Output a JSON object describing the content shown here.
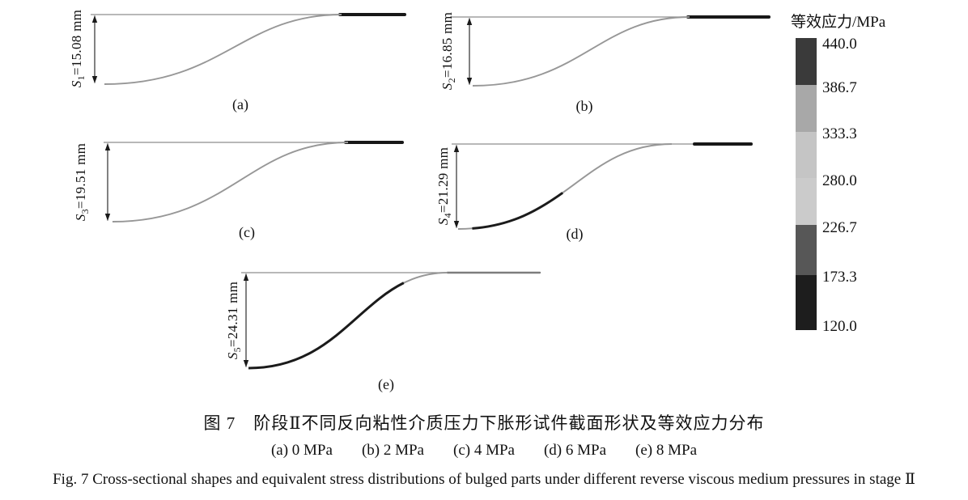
{
  "colors": {
    "topline": "#8d8d8d",
    "curve_gray": "#979797",
    "curve_black": "#1b1b1b",
    "tail_black": "#181818",
    "tail_gray": "#7d7d7d",
    "dim": "#1a1a1a"
  },
  "panels": [
    {
      "letter": "(a)",
      "s_sym": "S",
      "s_sub": "1",
      "s_rest": "=15.08 mm",
      "tail": "black",
      "black_span": null
    },
    {
      "letter": "(b)",
      "s_sym": "S",
      "s_sub": "2",
      "s_rest": "=16.85 mm",
      "tail": "black",
      "black_span": null
    },
    {
      "letter": "(c)",
      "s_sym": "S",
      "s_sub": "3",
      "s_rest": "=19.51 mm",
      "tail": "black",
      "black_span": null
    },
    {
      "letter": "(d)",
      "s_sym": "S",
      "s_sub": "4",
      "s_rest": "=21.29 mm",
      "tail": "black",
      "black_span": [
        6,
        48
      ]
    },
    {
      "letter": "(e)",
      "s_sym": "S",
      "s_sub": "5",
      "s_rest": "=24.31 mm",
      "tail": "gray",
      "black_span": [
        0,
        80
      ]
    }
  ],
  "legend": {
    "title": "等效应力/MPa",
    "tick_labels": [
      "440.0",
      "386.7",
      "333.3",
      "280.0",
      "226.7",
      "173.3",
      "120.0"
    ],
    "band_colors": [
      "#3a3a3a",
      "#a8a8a8",
      "#c5c5c5",
      "#cbcbcb",
      "#575757",
      "#1d1d1d"
    ]
  },
  "captions": {
    "zh": "图 7　阶段Ⅱ不同反向粘性介质压力下胀形试件截面形状及等效应力分布",
    "pressures": [
      "(a) 0 MPa",
      "(b) 2 MPa",
      "(c) 4 MPa",
      "(d) 6 MPa",
      "(e) 8 MPa"
    ],
    "en": "Fig. 7  Cross-sectional shapes and equivalent stress distributions of bulged parts under different reverse viscous medium pressures in stage Ⅱ"
  },
  "figure_data": {
    "type": "cross-section-profiles",
    "pressure_MPa": [
      0,
      2,
      4,
      6,
      8
    ],
    "bulge_depth_mm": [
      15.08,
      16.85,
      19.51,
      21.29,
      24.31
    ],
    "stress_ticks_MPa": [
      440.0,
      386.7,
      333.3,
      280.0,
      226.7,
      173.3,
      120.0
    ],
    "stress_unit": "MPa"
  }
}
